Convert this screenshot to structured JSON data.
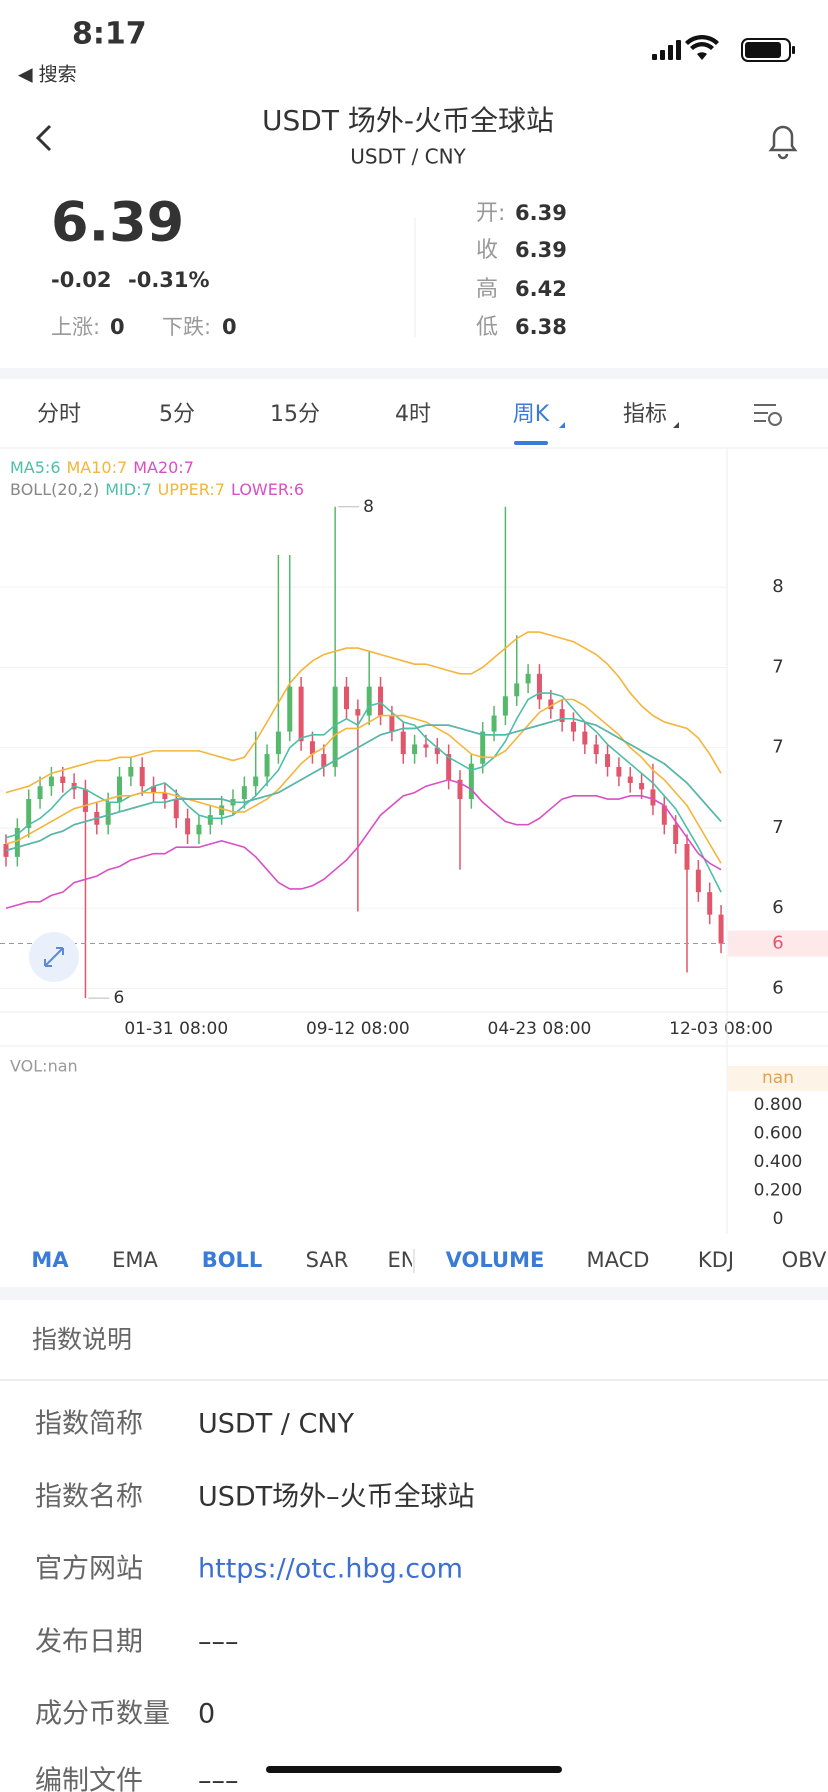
{
  "status_bar": {
    "time": "8:17",
    "back_app": "◀ 搜索"
  },
  "header": {
    "title": "USDT 场外-火币全球站",
    "subtitle": "USDT / CNY"
  },
  "quote": {
    "price": "6.39",
    "change": "-0.02",
    "change_pct": "-0.31%",
    "up": {
      "label": "上涨:",
      "value": "0"
    },
    "down": {
      "label": "下跌:",
      "value": "0"
    },
    "stats": [
      {
        "label": "开:",
        "value": "6.39"
      },
      {
        "label": "收",
        "value": "6.39"
      },
      {
        "label": "高",
        "value": "6.42"
      },
      {
        "label": "低",
        "value": "6.38"
      }
    ]
  },
  "period_tabs": [
    "分时",
    "5分",
    "15分",
    "4时",
    "周K",
    "指标"
  ],
  "active_period_tab": 4,
  "chart_data": {
    "type": "candlestick",
    "categories": [
      null,
      null,
      null,
      null,
      null,
      null,
      null,
      null,
      null,
      null,
      null,
      null,
      null,
      null,
      null,
      "01-31 08:00",
      null,
      null,
      null,
      null,
      null,
      null,
      null,
      null,
      null,
      null,
      null,
      null,
      null,
      null,
      null,
      "09-12 08:00",
      null,
      null,
      null,
      null,
      null,
      null,
      null,
      null,
      null,
      null,
      null,
      null,
      null,
      null,
      null,
      "04-23 08:00",
      null,
      null,
      null,
      null,
      null,
      null,
      null,
      null,
      null,
      null,
      null,
      null,
      null,
      null,
      null,
      "12-03 08:00"
    ],
    "open": [
      6.7,
      6.66,
      6.75,
      6.84,
      6.88,
      6.91,
      6.89,
      6.87,
      6.8,
      6.76,
      6.83,
      6.91,
      6.94,
      6.88,
      6.86,
      6.84,
      6.78,
      6.73,
      6.76,
      6.79,
      6.82,
      6.84,
      6.88,
      6.91,
      6.98,
      7.05,
      7.19,
      7.02,
      6.98,
      6.94,
      7.19,
      7.12,
      7.1,
      7.19,
      7.1,
      7.05,
      6.98,
      7.01,
      7.0,
      6.98,
      6.9,
      6.84,
      6.95,
      7.05,
      7.1,
      7.16,
      7.2,
      7.23,
      7.15,
      7.12,
      7.08,
      7.05,
      7.01,
      6.98,
      6.94,
      6.91,
      6.89,
      6.87,
      6.82,
      6.76,
      6.7,
      6.62,
      6.55,
      6.48
    ],
    "high": [
      6.73,
      6.78,
      6.87,
      6.91,
      6.94,
      6.94,
      6.92,
      6.9,
      6.83,
      6.86,
      6.94,
      6.97,
      6.97,
      6.91,
      6.89,
      6.87,
      6.81,
      6.79,
      6.82,
      6.85,
      6.87,
      6.91,
      7.05,
      7.01,
      7.6,
      7.6,
      7.22,
      7.05,
      7.01,
      7.75,
      7.22,
      7.15,
      7.3,
      7.22,
      7.13,
      7.08,
      7.04,
      7.04,
      7.03,
      7.01,
      6.93,
      6.98,
      7.08,
      7.13,
      7.75,
      7.35,
      7.26,
      7.26,
      7.18,
      7.15,
      7.11,
      7.08,
      7.04,
      7.01,
      6.97,
      6.94,
      6.92,
      6.95,
      6.85,
      6.79,
      6.73,
      6.65,
      6.58,
      6.51
    ],
    "low": [
      6.63,
      6.63,
      6.72,
      6.81,
      6.85,
      6.86,
      6.84,
      6.22,
      6.73,
      6.73,
      6.8,
      6.88,
      6.85,
      6.83,
      6.81,
      6.75,
      6.7,
      6.7,
      6.73,
      6.76,
      6.79,
      6.81,
      6.85,
      6.88,
      6.95,
      7.02,
      6.99,
      6.95,
      6.91,
      6.91,
      7.09,
      6.49,
      7.07,
      7.07,
      7.02,
      6.95,
      6.95,
      6.97,
      6.95,
      6.87,
      6.62,
      6.81,
      6.92,
      7.02,
      7.07,
      7.13,
      7.17,
      7.12,
      7.09,
      7.05,
      7.02,
      6.98,
      6.95,
      6.91,
      6.88,
      6.86,
      6.84,
      6.79,
      6.73,
      6.67,
      6.3,
      6.52,
      6.45,
      6.36
    ],
    "close": [
      6.66,
      6.75,
      6.84,
      6.88,
      6.91,
      6.89,
      6.87,
      6.8,
      6.76,
      6.83,
      6.91,
      6.94,
      6.88,
      6.86,
      6.84,
      6.78,
      6.73,
      6.76,
      6.79,
      6.82,
      6.84,
      6.88,
      6.91,
      6.98,
      7.05,
      7.19,
      7.02,
      6.98,
      6.94,
      7.19,
      7.12,
      7.1,
      7.19,
      7.1,
      7.05,
      6.98,
      7.01,
      7.0,
      6.98,
      6.9,
      6.84,
      6.95,
      7.05,
      7.1,
      7.16,
      7.2,
      7.23,
      7.15,
      7.12,
      7.08,
      7.05,
      7.01,
      6.98,
      6.94,
      6.91,
      6.89,
      6.87,
      6.82,
      6.76,
      6.7,
      6.62,
      6.55,
      6.48,
      6.39
    ],
    "up_color": "#56b86a",
    "down_color": "#e1566b",
    "series": [
      {
        "name": "MA5:6",
        "color": "#4dbfa8",
        "values": [
          6.72,
          6.73,
          6.76,
          6.78,
          6.81,
          6.85,
          6.88,
          6.87,
          6.85,
          6.83,
          6.83,
          6.85,
          6.86,
          6.88,
          6.89,
          6.86,
          6.82,
          6.79,
          6.78,
          6.78,
          6.79,
          6.82,
          6.85,
          6.89,
          6.93,
          7.0,
          7.03,
          7.04,
          7.04,
          7.07,
          7.09,
          7.07,
          7.13,
          7.14,
          7.11,
          7.08,
          7.07,
          7.03,
          7.0,
          6.97,
          6.95,
          6.93,
          6.94,
          6.97,
          7.02,
          7.09,
          7.15,
          7.17,
          7.17,
          7.16,
          7.12,
          7.08,
          7.05,
          7.01,
          6.98,
          6.95,
          6.92,
          6.89,
          6.85,
          6.81,
          6.75,
          6.69,
          6.62,
          6.55
        ]
      },
      {
        "name": "MA10:7",
        "color": "#f5b53a",
        "values": [
          6.7,
          6.71,
          6.73,
          6.75,
          6.77,
          6.79,
          6.81,
          6.82,
          6.83,
          6.84,
          6.85,
          6.85,
          6.86,
          6.86,
          6.86,
          6.85,
          6.84,
          6.83,
          6.82,
          6.81,
          6.8,
          6.8,
          6.82,
          6.84,
          6.87,
          6.91,
          6.95,
          6.98,
          7.0,
          7.04,
          7.06,
          7.06,
          7.08,
          7.1,
          7.1,
          7.1,
          7.09,
          7.08,
          7.06,
          7.04,
          7.01,
          6.98,
          6.97,
          6.97,
          6.99,
          7.03,
          7.07,
          7.11,
          7.13,
          7.15,
          7.15,
          7.13,
          7.1,
          7.07,
          7.04,
          7.0,
          6.97,
          6.93,
          6.9,
          6.86,
          6.82,
          6.76,
          6.7,
          6.64
        ]
      },
      {
        "name": "MA20:7",
        "color": "#d94fc4",
        "values": [
          6.68,
          6.69,
          6.7,
          6.71,
          6.73,
          6.74,
          6.76,
          6.77,
          6.78,
          6.79,
          6.8,
          6.81,
          6.82,
          6.83,
          6.83,
          6.84,
          6.84,
          6.84,
          6.84,
          6.84,
          6.83,
          6.83,
          6.84,
          6.85,
          6.86,
          6.88,
          6.9,
          6.92,
          6.94,
          6.96,
          6.98,
          7.0,
          7.02,
          7.04,
          7.05,
          7.06,
          7.06,
          7.07,
          7.07,
          7.07,
          7.06,
          7.05,
          7.04,
          7.04,
          7.04,
          7.05,
          7.06,
          7.07,
          7.08,
          7.09,
          7.09,
          7.08,
          7.07,
          7.05,
          7.03,
          7.01,
          6.99,
          6.97,
          6.95,
          6.92,
          6.89,
          6.85,
          6.81,
          6.77
        ]
      },
      {
        "name": "MID:7",
        "color": "#4dbfa8",
        "values": [
          6.68,
          6.69,
          6.7,
          6.71,
          6.73,
          6.74,
          6.76,
          6.77,
          6.78,
          6.79,
          6.8,
          6.81,
          6.82,
          6.83,
          6.83,
          6.84,
          6.84,
          6.84,
          6.84,
          6.84,
          6.83,
          6.83,
          6.84,
          6.85,
          6.86,
          6.88,
          6.9,
          6.92,
          6.94,
          6.96,
          6.98,
          7.0,
          7.02,
          7.04,
          7.05,
          7.06,
          7.06,
          7.07,
          7.07,
          7.07,
          7.06,
          7.05,
          7.04,
          7.04,
          7.04,
          7.05,
          7.06,
          7.07,
          7.08,
          7.09,
          7.09,
          7.08,
          7.07,
          7.05,
          7.03,
          7.01,
          6.99,
          6.97,
          6.95,
          6.92,
          6.89,
          6.85,
          6.81,
          6.77
        ]
      },
      {
        "name": "UPPER:7",
        "color": "#f5b53a",
        "values": [
          6.86,
          6.87,
          6.88,
          6.9,
          6.92,
          6.93,
          6.94,
          6.95,
          6.96,
          6.96,
          6.97,
          6.97,
          6.98,
          6.99,
          6.99,
          6.99,
          6.99,
          6.99,
          6.98,
          6.97,
          6.96,
          6.97,
          7.02,
          7.08,
          7.14,
          7.2,
          7.24,
          7.27,
          7.29,
          7.3,
          7.31,
          7.31,
          7.3,
          7.29,
          7.28,
          7.27,
          7.26,
          7.26,
          7.25,
          7.24,
          7.23,
          7.23,
          7.25,
          7.28,
          7.31,
          7.34,
          7.36,
          7.36,
          7.35,
          7.34,
          7.33,
          7.31,
          7.29,
          7.26,
          7.22,
          7.17,
          7.13,
          7.1,
          7.08,
          7.07,
          7.06,
          7.03,
          6.98,
          6.92
        ]
      },
      {
        "name": "LOWER:6",
        "color": "#d94fc4",
        "values": [
          6.5,
          6.51,
          6.52,
          6.52,
          6.54,
          6.55,
          6.58,
          6.59,
          6.6,
          6.62,
          6.63,
          6.65,
          6.66,
          6.67,
          6.67,
          6.69,
          6.69,
          6.69,
          6.7,
          6.71,
          6.7,
          6.69,
          6.66,
          6.62,
          6.58,
          6.56,
          6.56,
          6.57,
          6.59,
          6.62,
          6.65,
          6.69,
          6.74,
          6.79,
          6.82,
          6.85,
          6.86,
          6.88,
          6.89,
          6.9,
          6.89,
          6.87,
          6.83,
          6.8,
          6.77,
          6.76,
          6.76,
          6.78,
          6.81,
          6.84,
          6.85,
          6.85,
          6.85,
          6.84,
          6.84,
          6.85,
          6.85,
          6.84,
          6.82,
          6.77,
          6.72,
          6.67,
          6.64,
          6.62
        ]
      }
    ],
    "boll_label": "BOLL(20,2)",
    "ylim": [
      6.18,
      7.93
    ],
    "yticks": [
      {
        "value": 6.25,
        "label": "6"
      },
      {
        "value": 6.5,
        "label": "6"
      },
      {
        "value": 6.75,
        "label": "7"
      },
      {
        "value": 7.0,
        "label": "7"
      },
      {
        "value": 7.25,
        "label": "7"
      },
      {
        "value": 7.5,
        "label": "8"
      }
    ],
    "grid": true,
    "last_price": {
      "value": 6.39,
      "label": "6"
    },
    "max_label": {
      "value": 7.75,
      "label": "8"
    },
    "min_label": {
      "value": 6.22,
      "label": "6"
    }
  },
  "volume": {
    "label": "VOL:nan",
    "current": "nan",
    "ylim": [
      0,
      0.8
    ],
    "yticks": [
      {
        "value": 0.8,
        "label": "0.800"
      },
      {
        "value": 0.6,
        "label": "0.600"
      },
      {
        "value": 0.4,
        "label": "0.400"
      },
      {
        "value": 0.2,
        "label": "0.200"
      },
      0
    ]
  },
  "indicator_tabs": [
    "MA",
    "EMA",
    "BOLL",
    "SAR",
    "EN",
    "VOLUME",
    "MACD",
    "KDJ",
    "OBV"
  ],
  "active_indicator_tabs": [
    0,
    2,
    5
  ],
  "info": {
    "title": "指数说明",
    "rows": [
      [
        "指数简称",
        "USDT / CNY"
      ],
      [
        "指数名称",
        "USDT场外–火币全球站"
      ],
      [
        "官方网站",
        "https://otc.hbg.com"
      ],
      [
        "发布日期",
        "–––"
      ],
      [
        "成分币数量",
        "0"
      ],
      [
        "编制文件",
        "–––"
      ]
    ]
  }
}
